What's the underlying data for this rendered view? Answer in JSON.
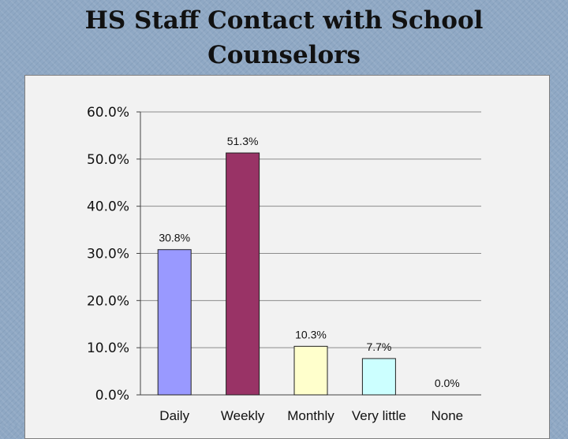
{
  "title_line1": "HS Staff Contact with School",
  "title_line2": "Counselors",
  "chart_data": {
    "type": "bar",
    "title": "HS Staff Contact with School Counselors",
    "categories": [
      "Daily",
      "Weekly",
      "Monthly",
      "Very little",
      "None"
    ],
    "values": [
      30.8,
      51.3,
      10.3,
      7.7,
      0.0
    ],
    "data_labels": [
      "30.8%",
      "51.3%",
      "10.3%",
      "7.7%",
      "0.0%"
    ],
    "colors": [
      "#9999ff",
      "#993366",
      "#ffffcc",
      "#ccffff",
      "#ffffff"
    ],
    "ylim": [
      0,
      60
    ],
    "yticks": [
      "0.0%",
      "10.0%",
      "20.0%",
      "30.0%",
      "40.0%",
      "50.0%",
      "60.0%"
    ],
    "grid": true,
    "xlabel": "",
    "ylabel": ""
  }
}
